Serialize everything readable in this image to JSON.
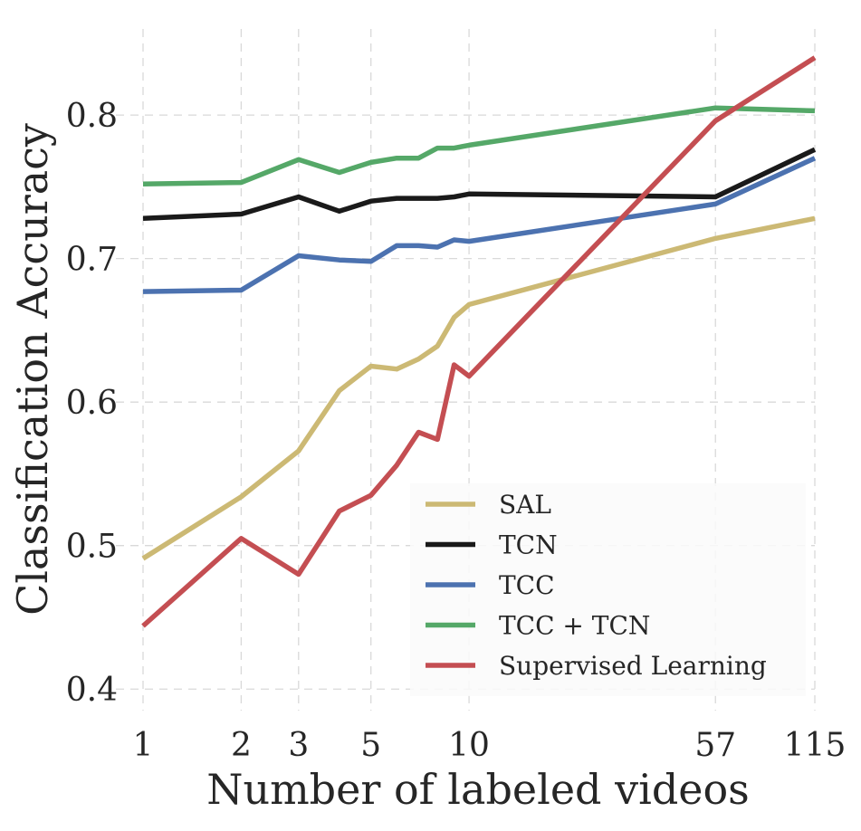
{
  "chart_data": {
    "type": "line",
    "title": "",
    "xlabel": "Number of labeled videos",
    "ylabel": "Classification Accuracy",
    "x_scale": "log",
    "xlim": [
      1,
      115
    ],
    "ylim": [
      0.385,
      0.86
    ],
    "x_ticks": [
      1,
      2,
      3,
      5,
      10,
      57,
      115
    ],
    "x_tick_labels": [
      "1",
      "2",
      "3",
      "5",
      "10",
      "57",
      "115"
    ],
    "y_ticks": [
      0.4,
      0.5,
      0.6,
      0.7,
      0.8
    ],
    "y_tick_labels": [
      "0.4",
      "0.5",
      "0.6",
      "0.7",
      "0.8"
    ],
    "grid": true,
    "legend_position": "bottom-right",
    "x": [
      1,
      2,
      3,
      4,
      5,
      6,
      7,
      8,
      9,
      10,
      57,
      115
    ],
    "series": [
      {
        "name": "SAL",
        "color": "#ccb974",
        "values": [
          0.491,
          0.534,
          0.566,
          0.608,
          0.625,
          0.623,
          0.63,
          0.639,
          0.659,
          0.668,
          0.714,
          0.728
        ]
      },
      {
        "name": "TCN",
        "color": "#1a1a1a",
        "values": [
          0.728,
          0.731,
          0.743,
          0.733,
          0.74,
          0.742,
          0.742,
          0.742,
          0.743,
          0.745,
          0.743,
          0.776
        ]
      },
      {
        "name": "TCC",
        "color": "#4c72b0",
        "values": [
          0.677,
          0.678,
          0.702,
          0.699,
          0.698,
          0.709,
          0.709,
          0.708,
          0.713,
          0.712,
          0.738,
          0.77
        ]
      },
      {
        "name": "TCC + TCN",
        "color": "#55a868",
        "values": [
          0.752,
          0.753,
          0.769,
          0.76,
          0.767,
          0.77,
          0.77,
          0.777,
          0.777,
          0.779,
          0.805,
          0.803
        ]
      },
      {
        "name": "Supervised Learning",
        "color": "#c44e52",
        "values": [
          0.444,
          0.505,
          0.48,
          0.524,
          0.535,
          0.556,
          0.579,
          0.574,
          0.626,
          0.618,
          0.796,
          0.84
        ]
      }
    ]
  }
}
